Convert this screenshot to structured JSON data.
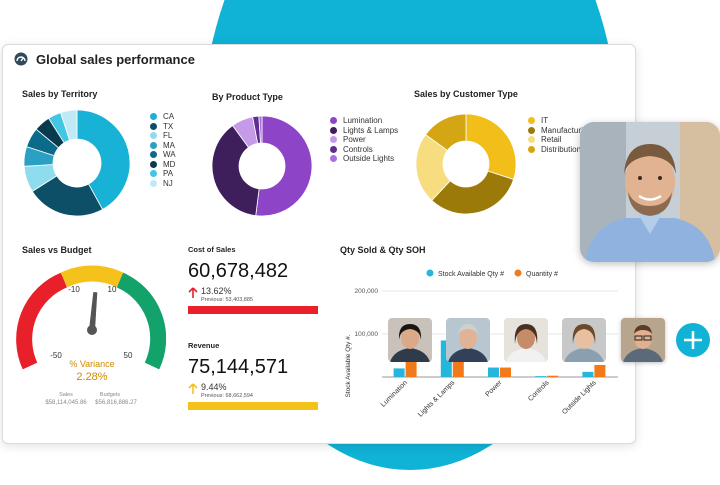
{
  "dashboard": {
    "title": "Global sales performance",
    "icon": "gauge-icon"
  },
  "territory": {
    "title": "Sales by Territory",
    "legend": [
      "CA",
      "TX",
      "FL",
      "MA",
      "WA",
      "MD",
      "PA",
      "NJ"
    ],
    "values": [
      42,
      24,
      8,
      6,
      6,
      5,
      4,
      5
    ],
    "colors": [
      "#17b2d6",
      "#0d4f66",
      "#8fdcef",
      "#2aa0c4",
      "#0b6b8a",
      "#0a3a4e",
      "#42c6e3",
      "#bfeaf5"
    ]
  },
  "product": {
    "title": "By Product Type",
    "legend": [
      "Lumination",
      "Lights & Lamps",
      "Power",
      "Controls",
      "Outside Lights"
    ],
    "values": [
      52,
      38,
      7,
      2,
      1
    ],
    "colors": [
      "#8e44c7",
      "#3e1f5c",
      "#c59ae8",
      "#5d2f8e",
      "#ad6ee0"
    ]
  },
  "customer": {
    "title": "Sales by Customer Type",
    "legend": [
      "IT",
      "Manufacturing",
      "Retail",
      "Distribution"
    ],
    "values": [
      30,
      32,
      23,
      15
    ],
    "colors": [
      "#f2be1a",
      "#9c7a0a",
      "#f7dc80",
      "#d4a614"
    ]
  },
  "budget": {
    "title": "Sales vs Budget",
    "ticks": [
      "-50",
      "-10",
      "10",
      "50"
    ],
    "variance_label": "% Variance",
    "variance_value": "2.28%",
    "sales_label": "Sales",
    "sales_value": "$58,114,045.86",
    "budget_label": "Budgets",
    "budget_value": "$56,816,886.27",
    "needle_value": 2.28,
    "colors": {
      "low": "#e8202a",
      "mid": "#f5c21b",
      "high": "#13a36a",
      "text": "#d08a00"
    }
  },
  "cost": {
    "title": "Cost of Sales",
    "value": "60,678,482",
    "delta": "13.62%",
    "previous": "Previous: 53,403,885",
    "color": "#e8202a"
  },
  "revenue": {
    "title": "Revenue",
    "value": "75,144,571",
    "delta": "9.44%",
    "previous": "Previous: 68,662,594",
    "color": "#f5c21b"
  },
  "qty": {
    "title": "Qty Sold & Qty SOH",
    "legend": [
      "Stock Available Qty #",
      "Quantity #"
    ],
    "colors": [
      "#26b6dc",
      "#f27a1a"
    ],
    "ylabel": "Stock Available Qty #.",
    "yticks": [
      "200,000",
      "100,000"
    ],
    "categories": [
      "Lumination",
      "Lights & Lamps",
      "Power",
      "Controls",
      "Outside Lights"
    ]
  },
  "chart_data": {
    "type": "bar",
    "title": "Qty Sold & Qty SOH",
    "categories": [
      "Lumination",
      "Lights & Lamps",
      "Power",
      "Controls",
      "Outside Lights"
    ],
    "series": [
      {
        "name": "Stock Available Qty #",
        "values": [
          20000,
          85000,
          22000,
          2000,
          12000
        ]
      },
      {
        "name": "Quantity #",
        "values": [
          35000,
          38000,
          22000,
          3000,
          28000
        ]
      }
    ],
    "ylabel": "Stock Available Qty #.",
    "ylim": [
      0,
      200000
    ],
    "legend": "top"
  }
}
